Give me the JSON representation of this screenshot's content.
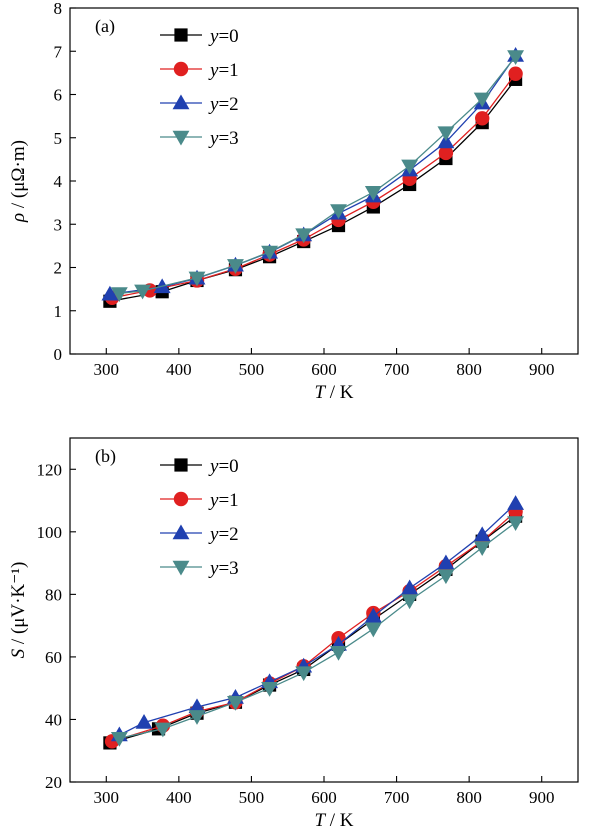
{
  "chart_data": [
    {
      "type": "line",
      "panel_label": "(a)",
      "xlabel": {
        "var": "T",
        "unit": " / K"
      },
      "ylabel": {
        "var": "ρ",
        "unit": " / (μΩ·m)"
      },
      "xlim": [
        250,
        950
      ],
      "ylim": [
        0,
        8
      ],
      "xticks": [
        300,
        400,
        500,
        600,
        700,
        800,
        900
      ],
      "yticks": [
        0,
        1,
        2,
        3,
        4,
        5,
        6,
        7,
        8
      ],
      "legend_position": "top-left",
      "series": [
        {
          "name": "=0",
          "name_var": "y",
          "color": "#000000",
          "marker": "square",
          "x": [
            305,
            377,
            425,
            478,
            525,
            572,
            620,
            668,
            718,
            768,
            818,
            864
          ],
          "y": [
            1.22,
            1.44,
            1.7,
            1.95,
            2.25,
            2.6,
            2.97,
            3.4,
            3.92,
            4.52,
            5.35,
            6.35
          ]
        },
        {
          "name": "=1",
          "name_var": "y",
          "color": "#e02020",
          "marker": "circle",
          "x": [
            308,
            360,
            425,
            478,
            525,
            572,
            620,
            668,
            718,
            768,
            818,
            864
          ],
          "y": [
            1.3,
            1.47,
            1.7,
            1.97,
            2.3,
            2.65,
            3.1,
            3.52,
            4.05,
            4.65,
            5.45,
            6.48
          ]
        },
        {
          "name": "=2",
          "name_var": "y",
          "color": "#2040b0",
          "marker": "triangle-up",
          "x": [
            305,
            377,
            425,
            478,
            525,
            572,
            620,
            668,
            718,
            768,
            818,
            864
          ],
          "y": [
            1.38,
            1.55,
            1.75,
            2.05,
            2.35,
            2.75,
            3.25,
            3.65,
            4.25,
            4.9,
            5.8,
            6.9
          ]
        },
        {
          "name": "=3",
          "name_var": "y",
          "color": "#4a8a8a",
          "marker": "triangle-down",
          "x": [
            318,
            350,
            425,
            478,
            525,
            572,
            620,
            668,
            718,
            768,
            818,
            864
          ],
          "y": [
            1.4,
            1.46,
            1.76,
            2.05,
            2.36,
            2.76,
            3.32,
            3.74,
            4.35,
            5.12,
            5.9,
            6.88
          ]
        }
      ]
    },
    {
      "type": "line",
      "panel_label": "(b)",
      "xlabel": {
        "var": "T",
        "unit": " / K"
      },
      "ylabel": {
        "var": "S",
        "unit": " / (μV·K⁻¹)"
      },
      "xlim": [
        250,
        950
      ],
      "ylim": [
        20,
        130
      ],
      "xticks": [
        300,
        400,
        500,
        600,
        700,
        800,
        900
      ],
      "yticks": [
        20,
        40,
        60,
        80,
        100,
        120
      ],
      "legend_position": "top-left",
      "series": [
        {
          "name": "=0",
          "name_var": "y",
          "color": "#000000",
          "marker": "square",
          "x": [
            305,
            372,
            425,
            478,
            525,
            572,
            620,
            668,
            718,
            768,
            818,
            864
          ],
          "y": [
            32.5,
            37,
            42,
            45.5,
            51,
            56,
            64,
            72,
            80,
            88,
            97,
            105
          ]
        },
        {
          "name": "=1",
          "name_var": "y",
          "color": "#e02020",
          "marker": "circle",
          "x": [
            308,
            378,
            425,
            478,
            525,
            572,
            620,
            668,
            718,
            768,
            818,
            864
          ],
          "y": [
            33,
            38,
            42.5,
            45.5,
            51.5,
            57,
            66,
            74,
            81,
            89,
            97,
            106.5
          ]
        },
        {
          "name": "=2",
          "name_var": "y",
          "color": "#2040b0",
          "marker": "triangle-up",
          "x": [
            318,
            352,
            425,
            478,
            525,
            572,
            620,
            668,
            718,
            768,
            818,
            864
          ],
          "y": [
            35,
            39,
            44,
            47,
            52,
            57,
            64,
            73,
            82,
            90,
            99,
            109
          ]
        },
        {
          "name": "=3",
          "name_var": "y",
          "color": "#4a8a8a",
          "marker": "triangle-down",
          "x": [
            318,
            378,
            425,
            478,
            525,
            572,
            620,
            668,
            718,
            768,
            818,
            864
          ],
          "y": [
            34,
            37,
            41,
            45.5,
            50,
            55,
            61.5,
            69,
            78,
            86,
            95,
            103
          ]
        }
      ]
    }
  ]
}
